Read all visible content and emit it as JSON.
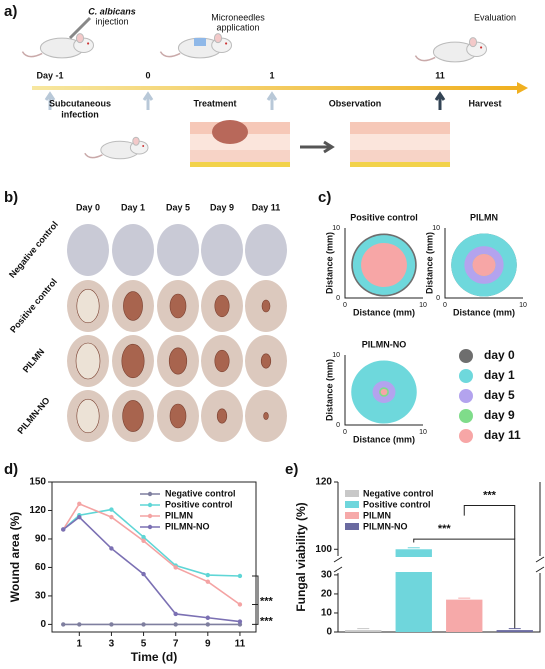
{
  "panel_a": {
    "label": "a)",
    "steps": [
      [
        "C. albicans",
        "injection"
      ],
      [
        "Microneedles",
        "application"
      ],
      [
        "Evaluation"
      ]
    ],
    "days": [
      "Day -1",
      "0",
      "1",
      "11"
    ],
    "phases": [
      [
        "Subcutaneous",
        "infection"
      ],
      [
        "Treatment"
      ],
      [
        "Observation"
      ],
      [
        "Harvest"
      ]
    ]
  },
  "panel_b": {
    "label": "b)",
    "columns": [
      "Day 0",
      "Day 1",
      "Day 5",
      "Day 9",
      "Day 11"
    ],
    "rows": [
      "Negative control",
      "Positive control",
      "PILMN",
      "PILMN-NO"
    ]
  },
  "panel_c": {
    "label": "c)",
    "plots": [
      "Positive control",
      "PILMN",
      "PILMN-NO"
    ],
    "xlabel": "Distance (mm)",
    "ylabel": "Distance (mm)",
    "ticks": [
      0,
      10
    ],
    "legend": [
      {
        "name": "day 0",
        "color": "#6e6e6e"
      },
      {
        "name": "day 1",
        "color": "#6ed8dc"
      },
      {
        "name": "day 5",
        "color": "#b3a3ee"
      },
      {
        "name": "day 9",
        "color": "#7fdc8a"
      },
      {
        "name": "day 11",
        "color": "#f7a6a6"
      }
    ]
  },
  "chart_data": [
    {
      "type": "line",
      "label": "d)",
      "ylabel": "Wound area (%)",
      "xlabel": "Time (d)",
      "x": [
        0,
        1,
        3,
        5,
        7,
        9,
        11
      ],
      "xlim": [
        -0.7,
        12
      ],
      "xticks": [
        1,
        3,
        5,
        7,
        9,
        11
      ],
      "ylim": [
        -8,
        150
      ],
      "yticks": [
        0,
        30,
        60,
        90,
        120,
        150
      ],
      "series": [
        {
          "name": "Negative control",
          "color": "#7f7f9f",
          "values": [
            0,
            0,
            0,
            0,
            0,
            0,
            0
          ]
        },
        {
          "name": "Positive control",
          "color": "#5fd6d6",
          "values": [
            100,
            115,
            121,
            92,
            62,
            52,
            51
          ]
        },
        {
          "name": "PILMN",
          "color": "#f4a3a3",
          "values": [
            100,
            127,
            113,
            88,
            60,
            45,
            21
          ]
        },
        {
          "name": "PILMN-NO",
          "color": "#7b70b3",
          "values": [
            100,
            113,
            80,
            53,
            11,
            7,
            3
          ]
        }
      ],
      "annotations": [
        "***",
        "***"
      ]
    },
    {
      "type": "bar",
      "label": "e)",
      "ylabel": "Fungal viability (%)",
      "categories": [
        "Negative control",
        "Positive control",
        "PILMN",
        "PILMN-NO"
      ],
      "values": [
        1,
        100,
        17,
        1
      ],
      "colors": [
        "#c8c8c8",
        "#6fd6dc",
        "#f6a9a9",
        "#6a6aa0"
      ],
      "ylim": [
        0,
        120
      ],
      "ybreak": [
        31,
        98
      ],
      "yticks": [
        0,
        10,
        20,
        30,
        100,
        120
      ],
      "annotations": [
        "***",
        "***"
      ]
    }
  ]
}
